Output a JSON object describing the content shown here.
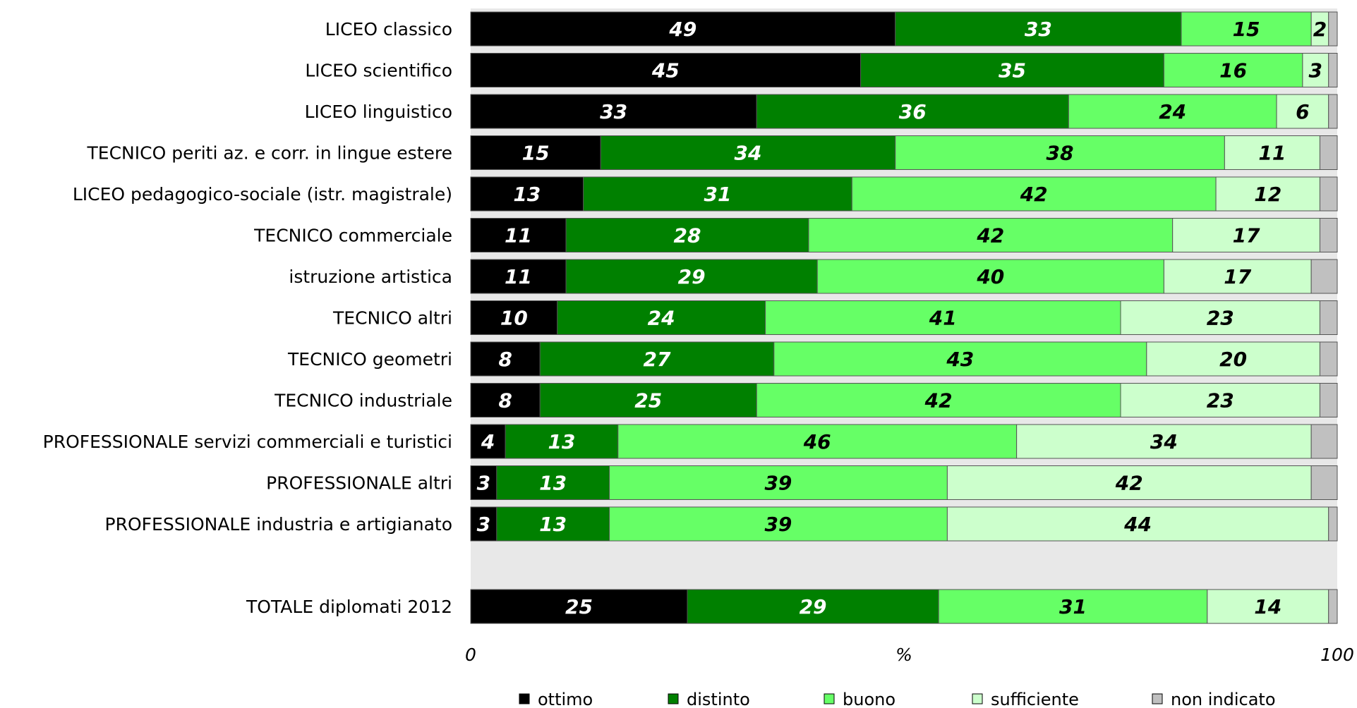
{
  "chart_data": {
    "type": "bar",
    "orientation": "horizontal",
    "stacked": true,
    "xlim": [
      0,
      100
    ],
    "x_ticks": [
      "0",
      "%",
      "100"
    ],
    "legend_position": "bottom",
    "categories": [
      "LICEO classico",
      "LICEO scientifico",
      "LICEO linguistico",
      "TECNICO periti az. e corr. in lingue estere",
      "LICEO pedagogico-sociale (istr. magistrale)",
      "TECNICO commerciale",
      "istruzione artistica",
      "TECNICO altri",
      "TECNICO geometri",
      "TECNICO industriale",
      "PROFESSIONALE servizi commerciali e turistici",
      "PROFESSIONALE altri",
      "PROFESSIONALE industria e artigianato",
      "",
      "TOTALE diplomati 2012"
    ],
    "series": [
      {
        "name": "ottimo",
        "color": "#000000",
        "label_color": "#ffffff",
        "values": [
          49,
          45,
          33,
          15,
          13,
          11,
          11,
          10,
          8,
          8,
          4,
          3,
          3,
          null,
          25
        ]
      },
      {
        "name": "distinto",
        "color": "#008000",
        "label_color": "#ffffff",
        "values": [
          33,
          35,
          36,
          34,
          31,
          28,
          29,
          24,
          27,
          25,
          13,
          13,
          13,
          null,
          29
        ]
      },
      {
        "name": "buono",
        "color": "#66ff66",
        "label_color": "#000000",
        "values": [
          15,
          16,
          24,
          38,
          42,
          42,
          40,
          41,
          43,
          42,
          46,
          39,
          39,
          null,
          31
        ]
      },
      {
        "name": "sufficiente",
        "color": "#ccffcc",
        "label_color": "#000000",
        "values": [
          2,
          3,
          6,
          11,
          12,
          17,
          17,
          23,
          20,
          23,
          34,
          42,
          44,
          null,
          14
        ]
      },
      {
        "name": "non indicato",
        "color": "#c0c0c0",
        "label_color": "#000000",
        "values": [
          1,
          1,
          1,
          2,
          2,
          2,
          3,
          2,
          2,
          2,
          3,
          3,
          1,
          null,
          1
        ]
      }
    ]
  }
}
